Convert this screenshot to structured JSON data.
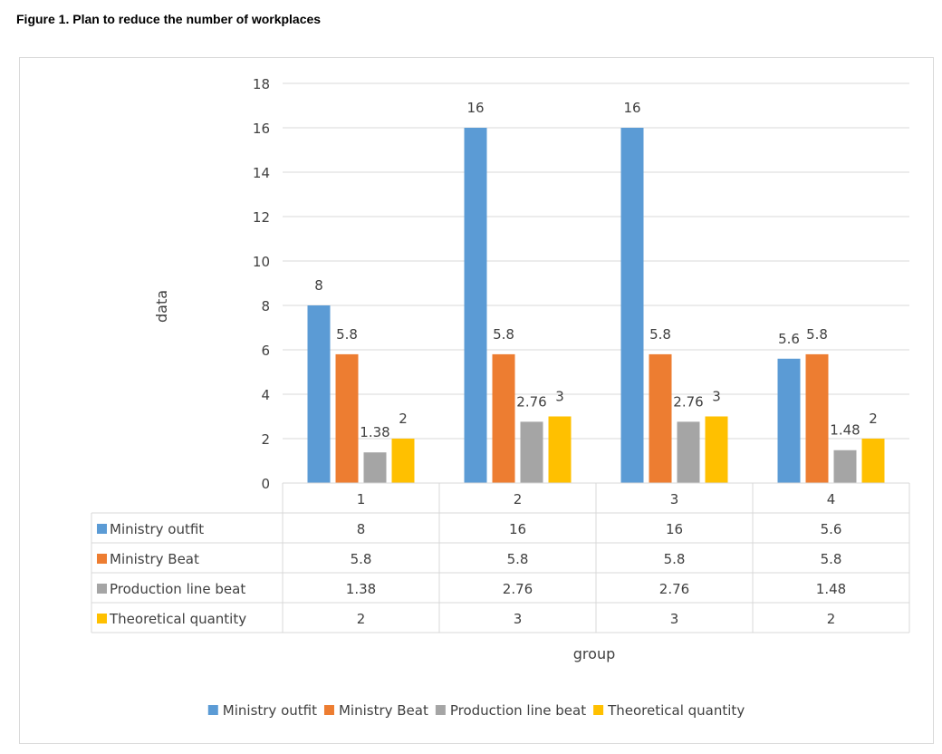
{
  "figure_title": "Figure 1. Plan to reduce the number of workplaces",
  "chart_data": {
    "type": "bar",
    "title": "",
    "xlabel": "group",
    "ylabel": "data",
    "ylim": [
      0,
      18
    ],
    "yticks": [
      0,
      2,
      4,
      6,
      8,
      10,
      12,
      14,
      16,
      18
    ],
    "categories": [
      "1",
      "2",
      "3",
      "4"
    ],
    "grid": true,
    "legend_position": "bottom",
    "data_table": true,
    "series": [
      {
        "name": "Ministry outfit",
        "color": "#5b9bd5",
        "values": [
          8,
          16,
          16,
          5.6
        ]
      },
      {
        "name": "Ministry Beat",
        "color": "#ed7d31",
        "values": [
          5.8,
          5.8,
          5.8,
          5.8
        ]
      },
      {
        "name": "Production line beat",
        "color": "#a5a5a5",
        "values": [
          1.38,
          2.76,
          2.76,
          1.48
        ]
      },
      {
        "name": "Theoretical quantity",
        "color": "#ffc000",
        "values": [
          2,
          3,
          3,
          2
        ]
      }
    ]
  }
}
